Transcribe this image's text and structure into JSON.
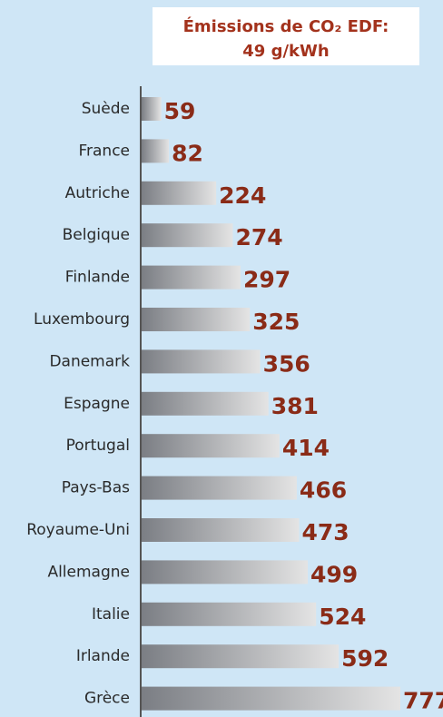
{
  "chart_data": {
    "type": "barh",
    "title": "Émissions de CO₂ EDF:",
    "subtitle": "49 g/kWh",
    "categories": [
      "Suède",
      "France",
      "Autriche",
      "Belgique",
      "Finlande",
      "Luxembourg",
      "Danemark",
      "Espagne",
      "Portugal",
      "Pays-Bas",
      "Royaume-Uni",
      "Allemagne",
      "Italie",
      "Irlande",
      "Grèce"
    ],
    "values": [
      59,
      82,
      224,
      274,
      297,
      325,
      356,
      381,
      414,
      466,
      473,
      499,
      524,
      592,
      777
    ],
    "color": "#7b7e84"
  }
}
